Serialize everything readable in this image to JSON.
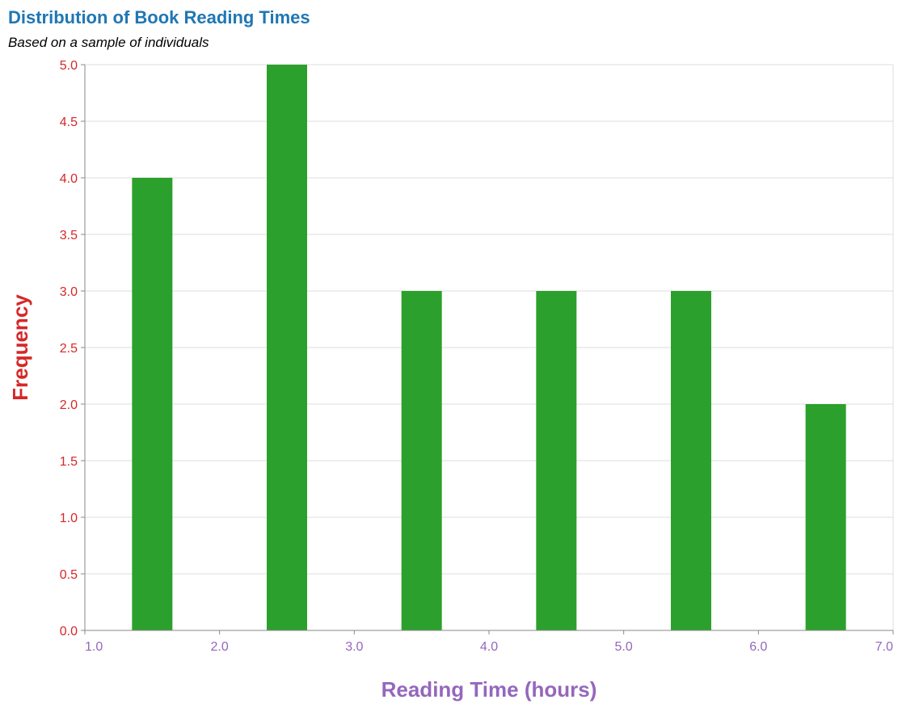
{
  "colors": {
    "title": "#1f77b4",
    "y_axis": "#d62728",
    "x_axis": "#9467bd",
    "bar": "#2ca02c",
    "grid": "#dddddd",
    "domain": "#888888"
  },
  "chart_data": {
    "type": "bar",
    "title": "Distribution of Book Reading Times",
    "subtitle": "Based on a sample of individuals",
    "xlabel": "Reading Time (hours)",
    "ylabel": "Frequency",
    "xlim": [
      1.0,
      7.0
    ],
    "ylim": [
      0.0,
      5.0
    ],
    "x_ticks": [
      "1.0",
      "2.0",
      "3.0",
      "4.0",
      "5.0",
      "6.0",
      "7.0"
    ],
    "y_ticks": [
      "0.0",
      "0.5",
      "1.0",
      "1.5",
      "2.0",
      "2.5",
      "3.0",
      "3.5",
      "4.0",
      "4.5",
      "5.0"
    ],
    "bins": [
      {
        "start": 1.0,
        "end": 2.0,
        "value": 4
      },
      {
        "start": 2.0,
        "end": 3.0,
        "value": 5
      },
      {
        "start": 3.0,
        "end": 4.0,
        "value": 3
      },
      {
        "start": 4.0,
        "end": 5.0,
        "value": 3
      },
      {
        "start": 5.0,
        "end": 6.0,
        "value": 3
      },
      {
        "start": 6.0,
        "end": 7.0,
        "value": 2
      }
    ],
    "grid": true,
    "legend": "none"
  }
}
